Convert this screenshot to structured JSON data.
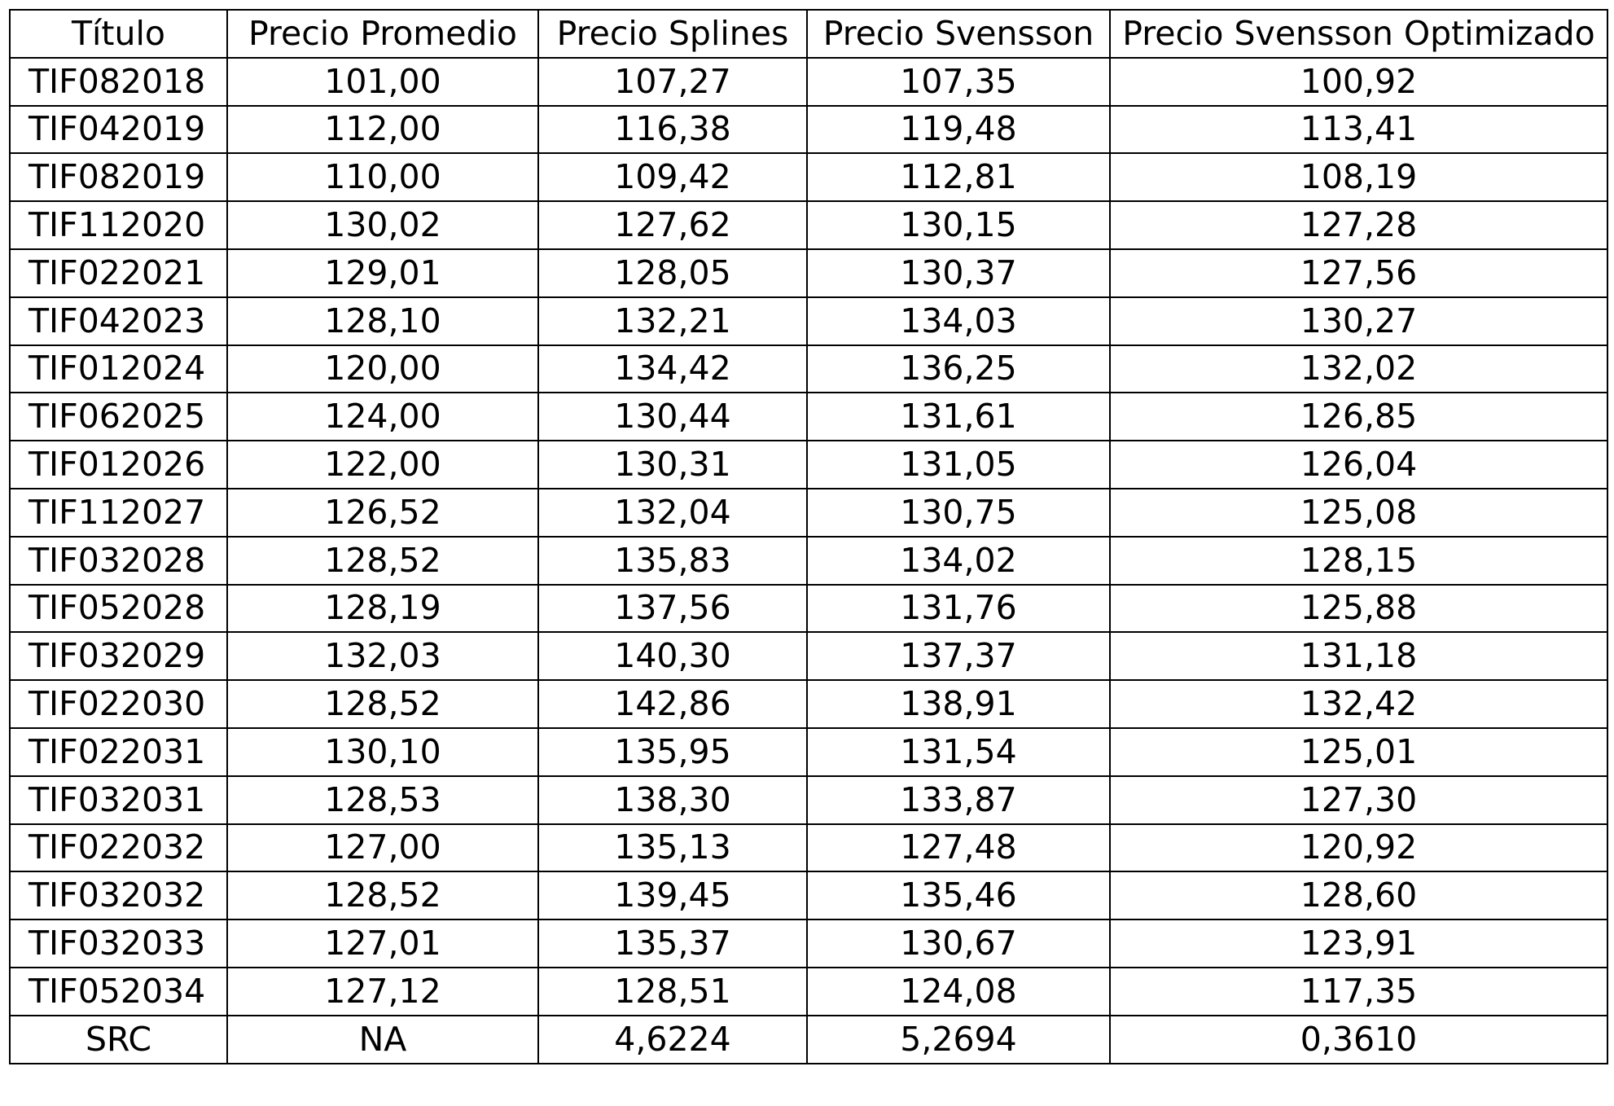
{
  "table": {
    "headers": [
      "Título",
      "Precio Promedio",
      "Precio Splines",
      "Precio Svensson",
      "Precio Svensson Optimizado"
    ],
    "rows": [
      [
        "TIF082018",
        "101,00",
        "107,27",
        "107,35",
        "100,92"
      ],
      [
        "TIF042019",
        "112,00",
        "116,38",
        "119,48",
        "113,41"
      ],
      [
        "TIF082019",
        "110,00",
        "109,42",
        "112,81",
        "108,19"
      ],
      [
        "TIF112020",
        "130,02",
        "127,62",
        "130,15",
        "127,28"
      ],
      [
        "TIF022021",
        "129,01",
        "128,05",
        "130,37",
        "127,56"
      ],
      [
        "TIF042023",
        "128,10",
        "132,21",
        "134,03",
        "130,27"
      ],
      [
        "TIF012024",
        "120,00",
        "134,42",
        "136,25",
        "132,02"
      ],
      [
        "TIF062025",
        "124,00",
        "130,44",
        "131,61",
        "126,85"
      ],
      [
        "TIF012026",
        "122,00",
        "130,31",
        "131,05",
        "126,04"
      ],
      [
        "TIF112027",
        "126,52",
        "132,04",
        "130,75",
        "125,08"
      ],
      [
        "TIF032028",
        "128,52",
        "135,83",
        "134,02",
        "128,15"
      ],
      [
        "TIF052028",
        "128,19",
        "137,56",
        "131,76",
        "125,88"
      ],
      [
        "TIF032029",
        "132,03",
        "140,30",
        "137,37",
        "131,18"
      ],
      [
        "TIF022030",
        "128,52",
        "142,86",
        "138,91",
        "132,42"
      ],
      [
        "TIF022031",
        "130,10",
        "135,95",
        "131,54",
        "125,01"
      ],
      [
        "TIF032031",
        "128,53",
        "138,30",
        "133,87",
        "127,30"
      ],
      [
        "TIF022032",
        "127,00",
        "135,13",
        "127,48",
        "120,92"
      ],
      [
        "TIF032032",
        "128,52",
        "139,45",
        "135,46",
        "128,60"
      ],
      [
        "TIF032033",
        "127,01",
        "135,37",
        "130,67",
        "123,91"
      ],
      [
        "TIF052034",
        "127,12",
        "128,51",
        "124,08",
        "117,35"
      ]
    ],
    "summary_row": [
      "SRC",
      "NA",
      "4,6224",
      "5,2694",
      "0,3610"
    ]
  }
}
